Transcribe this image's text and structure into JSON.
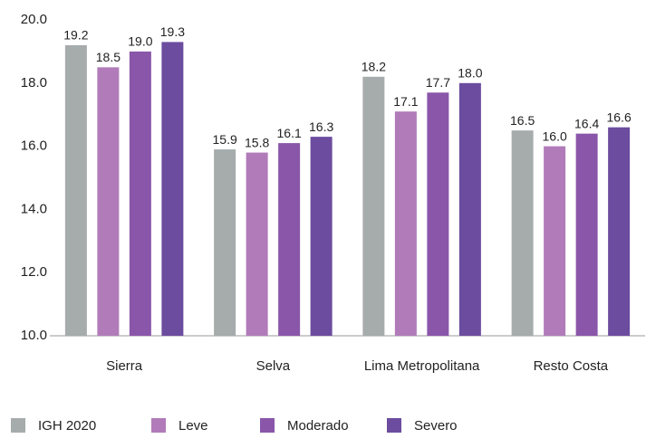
{
  "chart_data": {
    "type": "bar",
    "categories": [
      "Sierra",
      "Selva",
      "Lima Metropolitana",
      "Resto Costa"
    ],
    "series": [
      {
        "name": "IGH 2020",
        "color": "#a6abac",
        "values": [
          19.2,
          15.9,
          18.2,
          16.5
        ],
        "value_labels": [
          "19.2",
          "15.9",
          "18.2",
          "16.5"
        ]
      },
      {
        "name": "Leve",
        "color": "#b17bb9",
        "values": [
          18.5,
          15.8,
          17.1,
          16.0
        ],
        "value_labels": [
          "18.5",
          "15.8",
          "17.1",
          "16.0"
        ]
      },
      {
        "name": "Moderado",
        "color": "#8a56a9",
        "values": [
          19.0,
          16.1,
          17.7,
          16.4
        ],
        "value_labels": [
          "19.0",
          "16.1",
          "17.7",
          "16.4"
        ]
      },
      {
        "name": "Severo",
        "color": "#6b4c9f",
        "values": [
          19.3,
          16.3,
          18.0,
          16.6
        ],
        "value_labels": [
          "19.3",
          "16.3",
          "18.0",
          "16.6"
        ]
      }
    ],
    "ylim": [
      10,
      20
    ],
    "yticks": [
      {
        "value": 10,
        "label": "10.0"
      },
      {
        "value": 12,
        "label": "12.0"
      },
      {
        "value": 14,
        "label": "14.0"
      },
      {
        "value": 16,
        "label": "16.0"
      },
      {
        "value": 18,
        "label": "18.0"
      },
      {
        "value": 20,
        "label": "20.0"
      }
    ],
    "grid": false,
    "legend": "bottom"
  }
}
